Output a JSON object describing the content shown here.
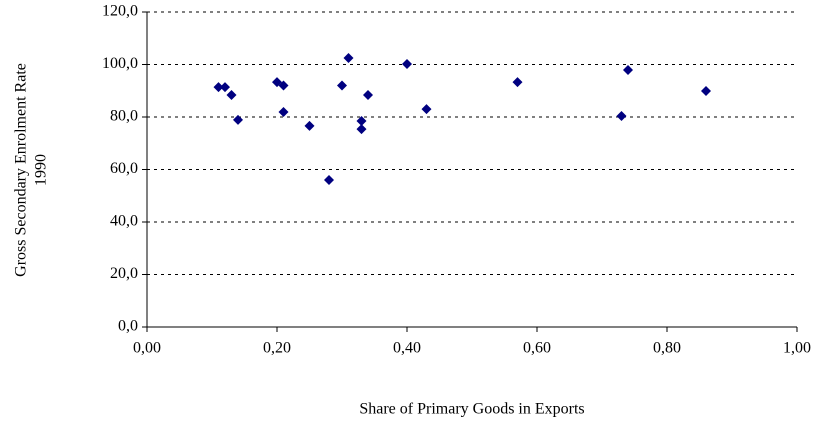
{
  "chart_data": {
    "type": "scatter",
    "x_label": "Share of Primary Goods in Exports",
    "y_label": [
      "Gross Secondary Enrolment Rate",
      "1990"
    ],
    "x": [
      0.11,
      0.12,
      0.13,
      0.14,
      0.2,
      0.21,
      0.21,
      0.25,
      0.28,
      0.3,
      0.31,
      0.33,
      0.33,
      0.34,
      0.4,
      0.43,
      0.57,
      0.73,
      0.74,
      0.86
    ],
    "values": [
      91.4,
      91.4,
      88.4,
      78.9,
      93.3,
      92.0,
      81.9,
      76.6,
      56.0,
      92.0,
      102.5,
      78.5,
      75.4,
      88.4,
      100.2,
      83.0,
      93.3,
      80.4,
      97.9,
      89.9
    ],
    "color": "#000080",
    "xlim": [
      0,
      1
    ],
    "xticks": [
      {
        "value": 0,
        "label": "0,00"
      },
      {
        "value": 0.2,
        "label": "0,20"
      },
      {
        "value": 0.4,
        "label": "0,40"
      },
      {
        "value": 0.6,
        "label": "0,60"
      },
      {
        "value": 0.8,
        "label": "0,80"
      },
      {
        "value": 1,
        "label": "1,00"
      }
    ],
    "ylim": [
      0,
      120
    ],
    "yticks": [
      {
        "value": 0,
        "label": "0,0"
      },
      {
        "value": 20,
        "label": "20,0"
      },
      {
        "value": 40,
        "label": "40,0"
      },
      {
        "value": 60,
        "label": "60,0"
      },
      {
        "value": 80,
        "label": "80,0"
      },
      {
        "value": 100,
        "label": "100,0"
      },
      {
        "value": 120,
        "label": "120,0"
      }
    ],
    "grid": true
  }
}
